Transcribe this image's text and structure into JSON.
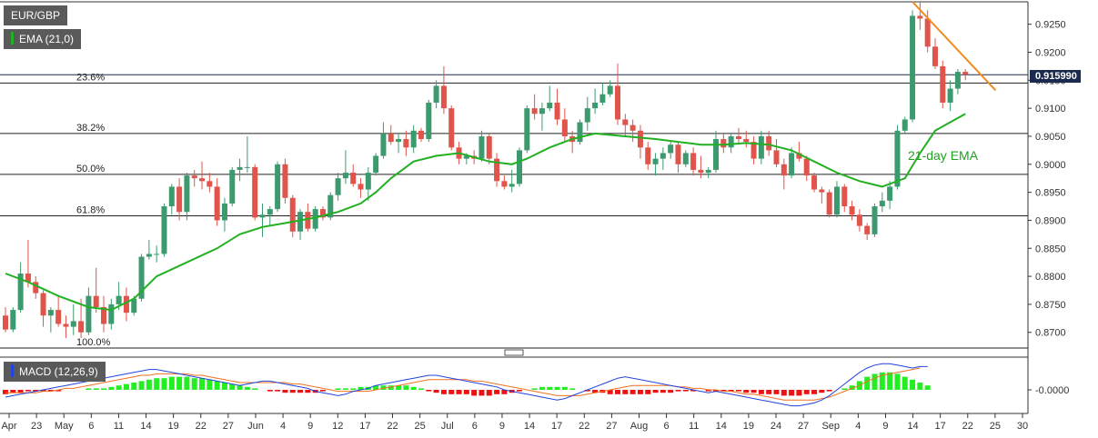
{
  "symbol": "EUR/GBP",
  "ema_tag": "EMA (21,0)",
  "macd_tag": "MACD (12,26,9)",
  "current_price": "0.915990",
  "ema_annotation": "21-day EMA",
  "colors": {
    "up": "#3c9a6e",
    "down": "#e0544b",
    "ema": "#22b022",
    "trend": "#f08c1e",
    "macd": "#2244dd",
    "signal": "#f07020",
    "hist_up": "#22ee22",
    "hist_down": "#ee1111"
  },
  "chart_data": {
    "type": "candlestick",
    "y_ticks": [
      "0.9250",
      "0.9200",
      "0.9150",
      "0.9100",
      "0.9050",
      "0.9000",
      "0.8950",
      "0.8900",
      "0.8850",
      "0.8800",
      "0.8750",
      "0.8700"
    ],
    "y_range": [
      0.8672,
      0.929
    ],
    "x_ticks": [
      "Apr",
      "23",
      "May",
      "6",
      "11",
      "14",
      "19",
      "22",
      "27",
      "Jun",
      "4",
      "9",
      "12",
      "17",
      "22",
      "25",
      "Jul",
      "6",
      "9",
      "14",
      "17",
      "22",
      "27",
      "Aug",
      "6",
      "11",
      "14",
      "19",
      "24",
      "27",
      "Sep",
      "4",
      "9",
      "14",
      "17",
      "22",
      "25",
      "30"
    ],
    "fib_levels": [
      {
        "label": "23.6%",
        "value": 0.9145
      },
      {
        "label": "38.2%",
        "value": 0.9055
      },
      {
        "label": "50.0%",
        "value": 0.8982
      },
      {
        "label": "61.8%",
        "value": 0.8908
      },
      {
        "label": "100.0%",
        "value": 0.8672
      }
    ],
    "candles": [
      [
        0.873,
        0.8745,
        0.87,
        0.8705
      ],
      [
        0.8705,
        0.8745,
        0.87,
        0.874
      ],
      [
        0.874,
        0.8825,
        0.8735,
        0.8805
      ],
      [
        0.8805,
        0.8865,
        0.878,
        0.879
      ],
      [
        0.879,
        0.88,
        0.876,
        0.877
      ],
      [
        0.877,
        0.8775,
        0.871,
        0.873
      ],
      [
        0.873,
        0.8745,
        0.87,
        0.874
      ],
      [
        0.874,
        0.8765,
        0.871,
        0.8715
      ],
      [
        0.8715,
        0.873,
        0.869,
        0.871
      ],
      [
        0.871,
        0.875,
        0.8695,
        0.872
      ],
      [
        0.872,
        0.876,
        0.869,
        0.87
      ],
      [
        0.87,
        0.878,
        0.8695,
        0.8765
      ],
      [
        0.8765,
        0.8815,
        0.8735,
        0.8745
      ],
      [
        0.8745,
        0.8765,
        0.87,
        0.8715
      ],
      [
        0.8715,
        0.876,
        0.8705,
        0.875
      ],
      [
        0.875,
        0.879,
        0.874,
        0.8765
      ],
      [
        0.8765,
        0.878,
        0.872,
        0.8735
      ],
      [
        0.8735,
        0.8765,
        0.873,
        0.876
      ],
      [
        0.876,
        0.884,
        0.8755,
        0.8835
      ],
      [
        0.8835,
        0.8865,
        0.883,
        0.884
      ],
      [
        0.884,
        0.8855,
        0.8825,
        0.884
      ],
      [
        0.884,
        0.893,
        0.8835,
        0.8925
      ],
      [
        0.8925,
        0.8965,
        0.891,
        0.896
      ],
      [
        0.896,
        0.8975,
        0.89,
        0.8915
      ],
      [
        0.8915,
        0.8985,
        0.89,
        0.898
      ],
      [
        0.898,
        0.899,
        0.896,
        0.8975
      ],
      [
        0.8975,
        0.9005,
        0.8955,
        0.897
      ],
      [
        0.897,
        0.8985,
        0.895,
        0.896
      ],
      [
        0.896,
        0.8975,
        0.889,
        0.89
      ],
      [
        0.89,
        0.894,
        0.888,
        0.893
      ],
      [
        0.893,
        0.8995,
        0.8925,
        0.899
      ],
      [
        0.899,
        0.901,
        0.897,
        0.8995
      ],
      [
        0.8995,
        0.905,
        0.8985,
        0.8995
      ],
      [
        0.8995,
        0.9,
        0.89,
        0.8905
      ],
      [
        0.8905,
        0.893,
        0.887,
        0.891
      ],
      [
        0.891,
        0.8925,
        0.889,
        0.892
      ],
      [
        0.892,
        0.9005,
        0.8915,
        0.9
      ],
      [
        0.9,
        0.901,
        0.893,
        0.894
      ],
      [
        0.894,
        0.8945,
        0.887,
        0.888
      ],
      [
        0.888,
        0.892,
        0.8865,
        0.8915
      ],
      [
        0.8915,
        0.893,
        0.888,
        0.8885
      ],
      [
        0.8885,
        0.8925,
        0.888,
        0.892
      ],
      [
        0.892,
        0.8925,
        0.89,
        0.8905
      ],
      [
        0.8905,
        0.895,
        0.89,
        0.8945
      ],
      [
        0.8945,
        0.8985,
        0.8935,
        0.8975
      ],
      [
        0.8975,
        0.9025,
        0.8965,
        0.8985
      ],
      [
        0.8985,
        0.9,
        0.896,
        0.8965
      ],
      [
        0.8965,
        0.8975,
        0.894,
        0.8955
      ],
      [
        0.8955,
        0.8995,
        0.8935,
        0.8985
      ],
      [
        0.8985,
        0.902,
        0.898,
        0.9015
      ],
      [
        0.9015,
        0.9075,
        0.901,
        0.9055
      ],
      [
        0.9055,
        0.907,
        0.9035,
        0.904
      ],
      [
        0.904,
        0.9055,
        0.902,
        0.9045
      ],
      [
        0.9045,
        0.906,
        0.9015,
        0.903
      ],
      [
        0.903,
        0.907,
        0.902,
        0.906
      ],
      [
        0.906,
        0.9065,
        0.904,
        0.9045
      ],
      [
        0.9045,
        0.9115,
        0.904,
        0.911
      ],
      [
        0.911,
        0.915,
        0.91,
        0.914
      ],
      [
        0.914,
        0.9175,
        0.909,
        0.91
      ],
      [
        0.91,
        0.9105,
        0.9025,
        0.903
      ],
      [
        0.903,
        0.904,
        0.9,
        0.901
      ],
      [
        0.901,
        0.902,
        0.9,
        0.9015
      ],
      [
        0.9015,
        0.9025,
        0.9,
        0.901
      ],
      [
        0.901,
        0.906,
        0.9005,
        0.905
      ],
      [
        0.905,
        0.9055,
        0.9,
        0.901
      ],
      [
        0.901,
        0.902,
        0.896,
        0.897
      ],
      [
        0.897,
        0.898,
        0.8955,
        0.896
      ],
      [
        0.896,
        0.899,
        0.895,
        0.8965
      ],
      [
        0.8965,
        0.903,
        0.896,
        0.9025
      ],
      [
        0.9025,
        0.9105,
        0.902,
        0.91
      ],
      [
        0.91,
        0.9125,
        0.908,
        0.909
      ],
      [
        0.909,
        0.911,
        0.906,
        0.91
      ],
      [
        0.91,
        0.914,
        0.9095,
        0.911
      ],
      [
        0.911,
        0.9135,
        0.907,
        0.908
      ],
      [
        0.908,
        0.91,
        0.904,
        0.905
      ],
      [
        0.905,
        0.906,
        0.902,
        0.904
      ],
      [
        0.904,
        0.908,
        0.9035,
        0.9075
      ],
      [
        0.9075,
        0.912,
        0.906,
        0.91
      ],
      [
        0.91,
        0.9135,
        0.909,
        0.911
      ],
      [
        0.911,
        0.9145,
        0.9105,
        0.9125
      ],
      [
        0.9125,
        0.915,
        0.912,
        0.914
      ],
      [
        0.914,
        0.918,
        0.907,
        0.908
      ],
      [
        0.908,
        0.909,
        0.905,
        0.907
      ],
      [
        0.907,
        0.908,
        0.904,
        0.906
      ],
      [
        0.906,
        0.907,
        0.901,
        0.903
      ],
      [
        0.903,
        0.904,
        0.899,
        0.9
      ],
      [
        0.9,
        0.902,
        0.898,
        0.901
      ],
      [
        0.901,
        0.903,
        0.899,
        0.902
      ],
      [
        0.902,
        0.904,
        0.901,
        0.9035
      ],
      [
        0.9035,
        0.904,
        0.8985,
        0.9
      ],
      [
        0.9,
        0.9025,
        0.8995,
        0.902
      ],
      [
        0.902,
        0.903,
        0.898,
        0.899
      ],
      [
        0.899,
        0.9015,
        0.8975,
        0.8985
      ],
      [
        0.8985,
        0.8995,
        0.8975,
        0.899
      ],
      [
        0.899,
        0.906,
        0.8985,
        0.9045
      ],
      [
        0.9045,
        0.9055,
        0.902,
        0.903
      ],
      [
        0.903,
        0.9055,
        0.902,
        0.905
      ],
      [
        0.905,
        0.9065,
        0.9035,
        0.9045
      ],
      [
        0.9045,
        0.906,
        0.903,
        0.904
      ],
      [
        0.904,
        0.905,
        0.9,
        0.901
      ],
      [
        0.901,
        0.906,
        0.9,
        0.905
      ],
      [
        0.905,
        0.906,
        0.9015,
        0.9025
      ],
      [
        0.9025,
        0.9045,
        0.8995,
        0.9
      ],
      [
        0.9,
        0.901,
        0.8955,
        0.898
      ],
      [
        0.898,
        0.903,
        0.8975,
        0.902
      ],
      [
        0.902,
        0.904,
        0.9005,
        0.901
      ],
      [
        0.901,
        0.9015,
        0.897,
        0.898
      ],
      [
        0.898,
        0.8985,
        0.895,
        0.8955
      ],
      [
        0.8955,
        0.896,
        0.893,
        0.895
      ],
      [
        0.895,
        0.8955,
        0.8905,
        0.891
      ],
      [
        0.891,
        0.897,
        0.8905,
        0.896
      ],
      [
        0.896,
        0.8965,
        0.8915,
        0.8925
      ],
      [
        0.8925,
        0.8935,
        0.89,
        0.891
      ],
      [
        0.891,
        0.892,
        0.888,
        0.889
      ],
      [
        0.889,
        0.8895,
        0.8865,
        0.8875
      ],
      [
        0.8875,
        0.893,
        0.887,
        0.8925
      ],
      [
        0.8925,
        0.895,
        0.8915,
        0.8935
      ],
      [
        0.8935,
        0.897,
        0.892,
        0.896
      ],
      [
        0.896,
        0.907,
        0.8955,
        0.906
      ],
      [
        0.906,
        0.9085,
        0.9055,
        0.908
      ],
      [
        0.908,
        0.9275,
        0.9075,
        0.9265
      ],
      [
        0.9265,
        0.929,
        0.924,
        0.926
      ],
      [
        0.926,
        0.9275,
        0.92,
        0.921
      ],
      [
        0.921,
        0.9225,
        0.917,
        0.9175
      ],
      [
        0.9175,
        0.9185,
        0.91,
        0.911
      ],
      [
        0.911,
        0.915,
        0.9095,
        0.9135
      ],
      [
        0.9135,
        0.917,
        0.9125,
        0.9165
      ],
      [
        0.9165,
        0.917,
        0.915,
        0.916
      ]
    ],
    "ema21": [
      [
        0.8805,
        0
      ],
      [
        0.879,
        3
      ],
      [
        0.8765,
        7
      ],
      [
        0.8745,
        11
      ],
      [
        0.874,
        14
      ],
      [
        0.876,
        17
      ],
      [
        0.88,
        20
      ],
      [
        0.8825,
        24
      ],
      [
        0.885,
        28
      ],
      [
        0.8875,
        31
      ],
      [
        0.8888,
        34
      ],
      [
        0.8895,
        37
      ],
      [
        0.8905,
        41
      ],
      [
        0.8915,
        44
      ],
      [
        0.893,
        47
      ],
      [
        0.895,
        49
      ],
      [
        0.8975,
        51
      ],
      [
        0.9005,
        54
      ],
      [
        0.9015,
        57
      ],
      [
        0.902,
        60
      ],
      [
        0.9005,
        64
      ],
      [
        0.9,
        67
      ],
      [
        0.901,
        69
      ],
      [
        0.903,
        72
      ],
      [
        0.9045,
        75
      ],
      [
        0.9055,
        78
      ],
      [
        0.905,
        82
      ],
      [
        0.9045,
        86
      ],
      [
        0.904,
        89
      ],
      [
        0.9035,
        92
      ],
      [
        0.9035,
        95
      ],
      [
        0.9038,
        98
      ],
      [
        0.9035,
        101
      ],
      [
        0.9025,
        104
      ],
      [
        0.9005,
        107
      ],
      [
        0.8985,
        110
      ],
      [
        0.897,
        113
      ],
      [
        0.896,
        116
      ],
      [
        0.8975,
        119
      ],
      [
        0.902,
        121
      ],
      [
        0.906,
        123
      ],
      [
        0.9075,
        125
      ],
      [
        0.909,
        127
      ]
    ],
    "trendline": [
      [
        0.929,
        120
      ],
      [
        0.9132,
        131
      ]
    ],
    "macd": {
      "y_label": "-0.0000",
      "histogram": [
        -3,
        -2,
        -2,
        -1,
        -1,
        -1,
        -1,
        -1,
        0,
        0,
        0,
        1,
        1,
        1,
        2,
        3,
        4,
        5,
        6,
        7,
        8,
        8,
        9,
        9,
        9,
        8,
        8,
        7,
        6,
        5,
        4,
        3,
        2,
        1,
        0,
        -1,
        -1,
        -2,
        -2,
        -2,
        -2,
        -2,
        -1,
        0,
        1,
        1,
        1,
        2,
        2,
        3,
        3,
        3,
        3,
        3,
        2,
        1,
        -1,
        -2,
        -3,
        -3,
        -3,
        -3,
        -4,
        -4,
        -4,
        -3,
        -3,
        -2,
        -1,
        0,
        1,
        2,
        2,
        2,
        2,
        1,
        0,
        -1,
        -2,
        -2,
        -3,
        -3,
        -3,
        -3,
        -3,
        -3,
        -2,
        -2,
        -2,
        -1,
        -1,
        -1,
        0,
        -1,
        -1,
        -1,
        -1,
        -1,
        -2,
        -2,
        -3,
        -3,
        -3,
        -4,
        -4,
        -4,
        -3,
        -3,
        -2,
        -1,
        0,
        1,
        3,
        6,
        9,
        11,
        12,
        12,
        11,
        9,
        7,
        5,
        3
      ],
      "macd_line": [
        -5,
        -4,
        -3,
        -2,
        -1,
        0,
        1,
        2,
        3,
        4,
        5,
        6,
        7,
        8,
        9,
        10,
        11,
        12,
        13,
        14,
        14,
        13,
        12,
        11,
        10,
        9,
        8,
        7,
        6,
        5,
        4,
        3,
        4,
        5,
        6,
        6,
        5,
        4,
        3,
        2,
        1,
        -1,
        -2,
        -3,
        -4,
        -3,
        -1,
        0,
        1,
        3,
        4,
        5,
        6,
        7,
        8,
        9,
        10,
        10,
        9,
        8,
        7,
        6,
        5,
        4,
        3,
        2,
        0,
        -1,
        -2,
        -3,
        -4,
        -5,
        -6,
        -7,
        -6,
        -4,
        -2,
        0,
        2,
        4,
        6,
        8,
        9,
        8,
        7,
        6,
        5,
        4,
        3,
        2,
        1,
        0,
        -1,
        -2,
        -1,
        -2,
        -3,
        -4,
        -5,
        -6,
        -7,
        -8,
        -9,
        -10,
        -11,
        -11,
        -10,
        -9,
        -7,
        -4,
        0,
        4,
        8,
        12,
        15,
        17,
        18,
        18,
        17,
        16,
        15,
        16,
        16
      ],
      "signal_line": [
        -2,
        -2,
        -2,
        -2,
        -2,
        -1,
        -1,
        0,
        1,
        1,
        2,
        3,
        4,
        5,
        6,
        7,
        8,
        9,
        10,
        10,
        11,
        11,
        11,
        11,
        11,
        10,
        10,
        9,
        8,
        7,
        6,
        5,
        5,
        5,
        5,
        5,
        5,
        5,
        4,
        4,
        3,
        2,
        1,
        0,
        -1,
        -1,
        -1,
        -1,
        -1,
        0,
        1,
        2,
        3,
        4,
        5,
        6,
        7,
        7,
        7,
        7,
        7,
        7,
        6,
        6,
        5,
        4,
        3,
        2,
        1,
        0,
        -1,
        -2,
        -3,
        -4,
        -4,
        -4,
        -4,
        -3,
        -2,
        -1,
        0,
        1,
        2,
        3,
        3,
        3,
        3,
        3,
        3,
        2,
        2,
        1,
        1,
        0,
        0,
        -1,
        -1,
        -2,
        -3,
        -3,
        -4,
        -5,
        -6,
        -7,
        -7,
        -7,
        -7,
        -7,
        -6,
        -5,
        -3,
        -1,
        1,
        3,
        6,
        8,
        10,
        11,
        12,
        13,
        14,
        15
      ]
    }
  }
}
